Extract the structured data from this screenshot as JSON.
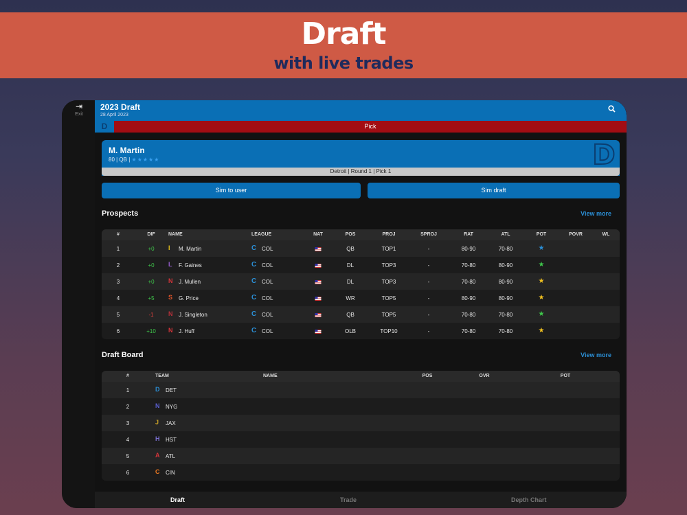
{
  "banner": {
    "title": "Draft",
    "subtitle": "with live trades"
  },
  "rail": {
    "exit_label": "Exit",
    "exit_icon": "exit-icon"
  },
  "header": {
    "title": "2023 Draft",
    "date": "28 April 2023",
    "search_icon": "search-icon"
  },
  "pick_bar": {
    "label": "Pick",
    "team_logo": "D"
  },
  "current_pick": {
    "name": "M. Martin",
    "meta": "80 | QB |",
    "stars": "★★★★★",
    "team_logo": "D",
    "footer": "Detroit | Round 1 | Pick 1"
  },
  "buttons": {
    "sim_user": "Sim to user",
    "sim_draft": "Sim draft"
  },
  "prospects": {
    "title": "Prospects",
    "view_more": "View more",
    "columns": [
      "#",
      "DIF",
      "NAME",
      "LEAGUE",
      "NAT",
      "POS",
      "PROJ",
      "SPROJ",
      "RAT",
      "ATL",
      "POT",
      "POVR",
      "WL"
    ],
    "rows": [
      {
        "num": "1",
        "dif": "+0",
        "dif_class": "pos",
        "logo": "I",
        "logo_color": "#e8c21c",
        "name": "M. Martin",
        "league_logo": "C",
        "league": "COL",
        "pos": "QB",
        "proj": "TOP1",
        "sproj": "-",
        "rat": "80-90",
        "atl": "70-80",
        "pot_color": "#2b8fd6"
      },
      {
        "num": "2",
        "dif": "+0",
        "dif_class": "pos",
        "logo": "L",
        "logo_color": "#9a5fd4",
        "name": "F. Gaines",
        "league_logo": "C",
        "league": "COL",
        "pos": "DL",
        "proj": "TOP3",
        "sproj": "-",
        "rat": "70-80",
        "atl": "80-90",
        "pot_color": "#3fc74b"
      },
      {
        "num": "3",
        "dif": "+0",
        "dif_class": "pos",
        "logo": "N",
        "logo_color": "#d6343a",
        "name": "J. Mullen",
        "league_logo": "C",
        "league": "COL",
        "pos": "DL",
        "proj": "TOP3",
        "sproj": "-",
        "rat": "70-80",
        "atl": "80-90",
        "pot_color": "#f0c020"
      },
      {
        "num": "4",
        "dif": "+5",
        "dif_class": "pos",
        "logo": "S",
        "logo_color": "#e0542a",
        "name": "G. Price",
        "league_logo": "C",
        "league": "COL",
        "pos": "WR",
        "proj": "TOP5",
        "sproj": "-",
        "rat": "80-90",
        "atl": "80-90",
        "pot_color": "#f0c020"
      },
      {
        "num": "5",
        "dif": "-1",
        "dif_class": "neg",
        "logo": "N",
        "logo_color": "#b8303a",
        "name": "J. Singleton",
        "league_logo": "C",
        "league": "COL",
        "pos": "QB",
        "proj": "TOP5",
        "sproj": "-",
        "rat": "70-80",
        "atl": "70-80",
        "pot_color": "#3fc74b"
      },
      {
        "num": "6",
        "dif": "+10",
        "dif_class": "pos",
        "logo": "N",
        "logo_color": "#d6343a",
        "name": "J. Huff",
        "league_logo": "C",
        "league": "COL",
        "pos": "OLB",
        "proj": "TOP10",
        "sproj": "-",
        "rat": "70-80",
        "atl": "70-80",
        "pot_color": "#f0c020"
      }
    ]
  },
  "draft_board": {
    "title": "Draft Board",
    "view_more": "View more",
    "columns": [
      "#",
      "TEAM",
      "NAME",
      "POS",
      "OVR",
      "POT"
    ],
    "rows": [
      {
        "num": "1",
        "logo": "D",
        "logo_color": "#2b8fd6",
        "team": "DET"
      },
      {
        "num": "2",
        "logo": "N",
        "logo_color": "#5a5fd0",
        "team": "NYG"
      },
      {
        "num": "3",
        "logo": "J",
        "logo_color": "#c9a227",
        "team": "JAX"
      },
      {
        "num": "4",
        "logo": "H",
        "logo_color": "#7a6fd0",
        "team": "HST"
      },
      {
        "num": "5",
        "logo": "A",
        "logo_color": "#d6343a",
        "team": "ATL"
      },
      {
        "num": "6",
        "logo": "C",
        "logo_color": "#f07a20",
        "team": "CIN"
      }
    ]
  },
  "tabs": [
    {
      "label": "Draft",
      "active": true
    },
    {
      "label": "Trade",
      "active": false
    },
    {
      "label": "Depth Chart",
      "active": false
    }
  ]
}
